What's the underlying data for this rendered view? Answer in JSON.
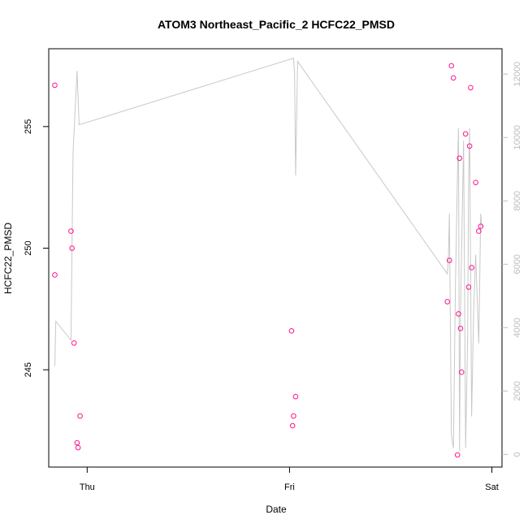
{
  "chart_data": {
    "type": "scatter",
    "title": "ATOM3 Northeast_Pacific_2 HCFC22_PMSD",
    "xlabel": "Date",
    "ylabel": "HCFC22_PMSD",
    "x_ticks": [
      "Thu",
      "Fri",
      "Sat"
    ],
    "y_ticks": [
      "245",
      "250",
      "255"
    ],
    "y2_ticks": [
      "0",
      "2000",
      "4000",
      "6000",
      "8000",
      "10000",
      "12000"
    ],
    "xlim": [
      -0.19,
      2.05
    ],
    "ylim": [
      241.0,
      258.2
    ],
    "y2lim": [
      -400,
      12800
    ],
    "point_color": "#ff1493",
    "line_color": "#c8c8c8",
    "right_axis_color": "#bdbdbd",
    "series": [
      {
        "type": "scatter",
        "points": [
          [
            -0.16,
            256.7
          ],
          [
            -0.16,
            248.9
          ],
          [
            -0.08,
            250.7
          ],
          [
            -0.075,
            250.0
          ],
          [
            -0.065,
            246.1
          ],
          [
            -0.05,
            242.0
          ],
          [
            -0.045,
            241.8
          ],
          [
            -0.035,
            243.1
          ],
          [
            1.01,
            246.6
          ],
          [
            1.015,
            242.7
          ],
          [
            1.02,
            243.1
          ],
          [
            1.03,
            243.9
          ],
          [
            1.78,
            247.8
          ],
          [
            1.79,
            249.5
          ],
          [
            1.8,
            257.5
          ],
          [
            1.81,
            257.0
          ],
          [
            1.83,
            241.5
          ],
          [
            1.835,
            247.3
          ],
          [
            1.84,
            253.7
          ],
          [
            1.845,
            246.7
          ],
          [
            1.85,
            244.9
          ],
          [
            1.87,
            254.7
          ],
          [
            1.885,
            248.4
          ],
          [
            1.89,
            254.2
          ],
          [
            1.895,
            256.6
          ],
          [
            1.9,
            249.2
          ],
          [
            1.92,
            252.7
          ],
          [
            1.935,
            250.7
          ],
          [
            1.945,
            250.9
          ]
        ]
      },
      {
        "type": "line",
        "axis": "right",
        "points": [
          [
            -0.16,
            2800
          ],
          [
            -0.155,
            4200
          ],
          [
            -0.08,
            3600
          ],
          [
            -0.07,
            9500
          ],
          [
            -0.05,
            12100
          ],
          [
            -0.04,
            10400
          ],
          [
            1.02,
            12500
          ],
          [
            1.025,
            12000
          ],
          [
            1.03,
            8800
          ],
          [
            1.04,
            12400
          ],
          [
            1.78,
            5700
          ],
          [
            1.785,
            6200
          ],
          [
            1.79,
            7600
          ],
          [
            1.8,
            600
          ],
          [
            1.81,
            200
          ],
          [
            1.82,
            5400
          ],
          [
            1.83,
            8900
          ],
          [
            1.835,
            10300
          ],
          [
            1.84,
            100
          ],
          [
            1.845,
            4500
          ],
          [
            1.86,
            9900
          ],
          [
            1.87,
            200
          ],
          [
            1.88,
            3700
          ],
          [
            1.885,
            8700
          ],
          [
            1.89,
            10300
          ],
          [
            1.9,
            1200
          ],
          [
            1.91,
            4500
          ],
          [
            1.92,
            6300
          ],
          [
            1.935,
            3500
          ],
          [
            1.945,
            7600
          ],
          [
            1.95,
            7200
          ]
        ]
      }
    ]
  }
}
